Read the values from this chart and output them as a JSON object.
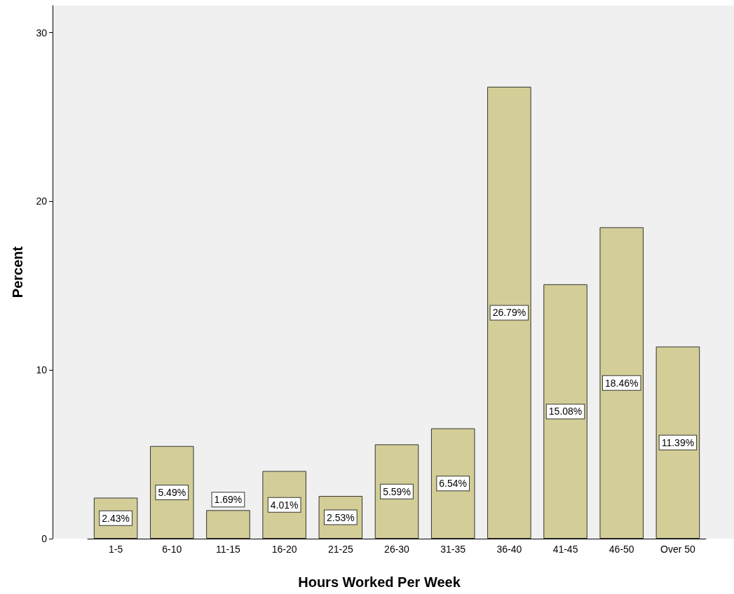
{
  "chart_data": {
    "type": "bar",
    "xlabel": "Hours Worked Per Week",
    "ylabel": "Percent",
    "categories": [
      "1-5",
      "6-10",
      "11-15",
      "16-20",
      "21-25",
      "26-30",
      "31-35",
      "36-40",
      "41-45",
      "46-50",
      "Over 50"
    ],
    "values": [
      2.43,
      5.49,
      1.69,
      4.01,
      2.53,
      5.59,
      6.54,
      26.79,
      15.08,
      18.46,
      11.39
    ],
    "value_labels": [
      "2.43%",
      "5.49%",
      "1.69%",
      "4.01%",
      "2.53%",
      "5.59%",
      "6.54%",
      "26.79%",
      "15.08%",
      "18.46%",
      "11.39%"
    ],
    "color": "#d3ce97",
    "ylim": [
      0,
      31.6
    ],
    "yticks": [
      0,
      10,
      20,
      30
    ]
  }
}
